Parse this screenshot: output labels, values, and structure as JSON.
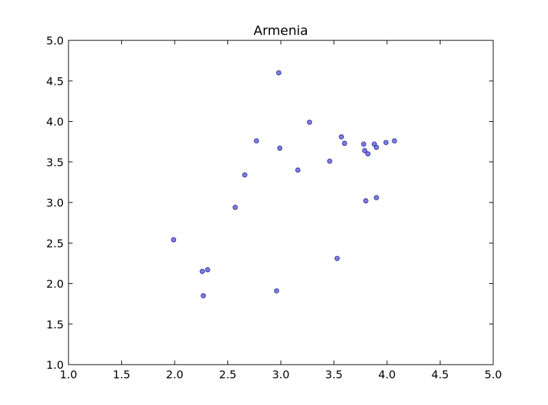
{
  "chart_data": {
    "type": "scatter",
    "title": "Armenia",
    "xlabel": "",
    "ylabel": "",
    "xlim": [
      1.0,
      5.0
    ],
    "ylim": [
      1.0,
      5.0
    ],
    "xticks": [
      "1.0",
      "1.5",
      "2.0",
      "2.5",
      "3.0",
      "3.5",
      "4.0",
      "4.5",
      "5.0"
    ],
    "yticks": [
      "1.0",
      "1.5",
      "2.0",
      "2.5",
      "3.0",
      "3.5",
      "4.0",
      "4.5",
      "5.0"
    ],
    "grid": false,
    "marker_color": "#6666dd",
    "marker_edge_color": "#1f1f8f",
    "points": [
      {
        "x": 1.99,
        "y": 2.54
      },
      {
        "x": 2.26,
        "y": 2.15
      },
      {
        "x": 2.31,
        "y": 2.17
      },
      {
        "x": 2.27,
        "y": 1.85
      },
      {
        "x": 2.57,
        "y": 2.94
      },
      {
        "x": 2.66,
        "y": 3.34
      },
      {
        "x": 2.77,
        "y": 3.76
      },
      {
        "x": 2.96,
        "y": 1.91
      },
      {
        "x": 2.98,
        "y": 4.6
      },
      {
        "x": 2.99,
        "y": 3.67
      },
      {
        "x": 3.16,
        "y": 3.4
      },
      {
        "x": 3.27,
        "y": 3.99
      },
      {
        "x": 3.46,
        "y": 3.51
      },
      {
        "x": 3.53,
        "y": 2.31
      },
      {
        "x": 3.57,
        "y": 3.81
      },
      {
        "x": 3.6,
        "y": 3.73
      },
      {
        "x": 3.78,
        "y": 3.72
      },
      {
        "x": 3.79,
        "y": 3.64
      },
      {
        "x": 3.8,
        "y": 3.02
      },
      {
        "x": 3.82,
        "y": 3.6
      },
      {
        "x": 3.88,
        "y": 3.72
      },
      {
        "x": 3.9,
        "y": 3.68
      },
      {
        "x": 3.9,
        "y": 3.06
      },
      {
        "x": 3.99,
        "y": 3.74
      },
      {
        "x": 4.07,
        "y": 3.76
      }
    ]
  }
}
